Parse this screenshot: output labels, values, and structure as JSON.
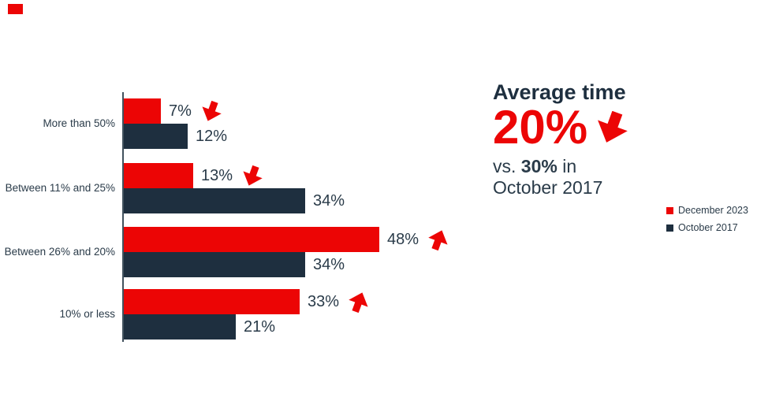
{
  "colors": {
    "red": "#EC0505",
    "navy": "#1E2F3F",
    "text_navy": "#2A3B49",
    "axis": "#42525E"
  },
  "decor": {
    "corner_square_color": "#EC0505"
  },
  "chart_data": {
    "type": "bar",
    "orientation": "horizontal",
    "categories": [
      "More than 50%",
      "Between 11% and 25%",
      "Between 26% and 20%",
      "10% or less"
    ],
    "series": [
      {
        "name": "December 2023",
        "color": "#EC0505",
        "values": [
          7,
          13,
          48,
          33
        ],
        "value_labels": [
          "7%",
          "13%",
          "48%",
          "33%"
        ],
        "trends": [
          "down",
          "down",
          "up",
          "up"
        ]
      },
      {
        "name": "October 2017",
        "color": "#1E2F3F",
        "values": [
          12,
          34,
          34,
          21
        ],
        "value_labels": [
          "12%",
          "34%",
          "34%",
          "21%"
        ],
        "trends": [
          null,
          null,
          null,
          null
        ]
      }
    ],
    "value_suffix": "%",
    "xlim": [
      0,
      50
    ],
    "grid": false,
    "legend_position": "right-middle"
  },
  "summary": {
    "title": "Average time",
    "value": "20%",
    "trend": "down",
    "vs_prefix": "vs. ",
    "vs_value": "30%",
    "vs_suffix": " in",
    "vs_line2": "October 2017"
  },
  "legend": {
    "items": [
      {
        "label": "December 2023",
        "color": "#EC0505"
      },
      {
        "label": "October 2017",
        "color": "#1E2F3F"
      }
    ]
  }
}
